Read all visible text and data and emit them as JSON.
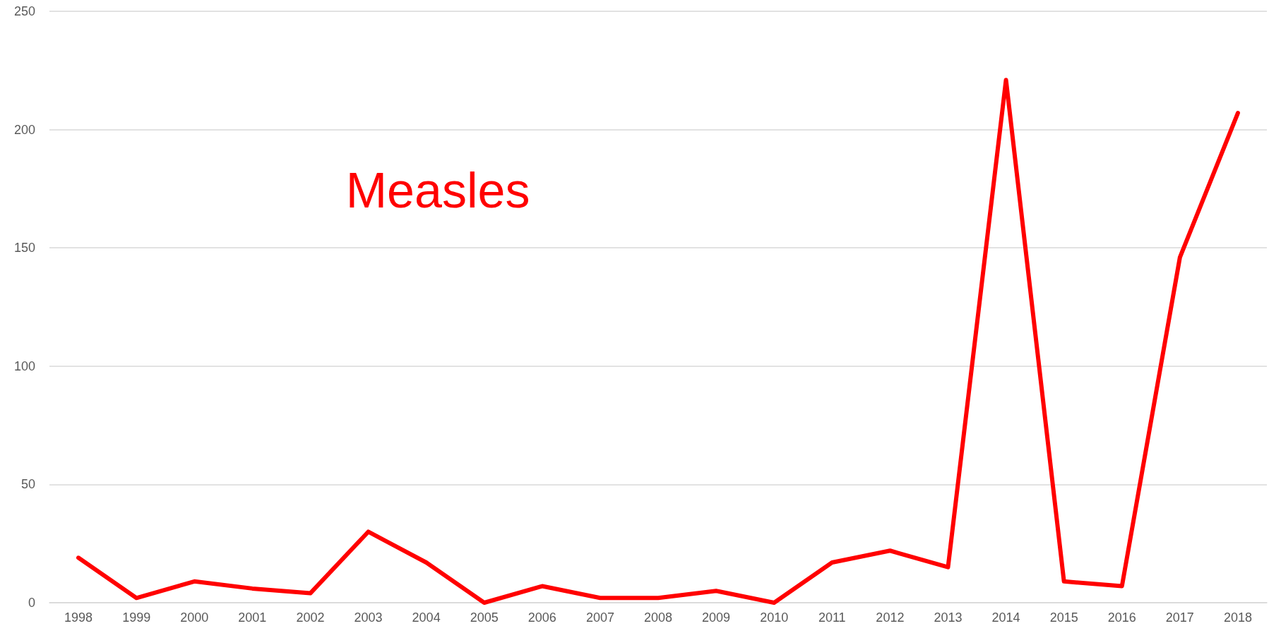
{
  "chart_data": {
    "type": "line",
    "categories": [
      "1998",
      "1999",
      "2000",
      "2001",
      "2002",
      "2003",
      "2004",
      "2005",
      "2006",
      "2007",
      "2008",
      "2009",
      "2010",
      "2011",
      "2012",
      "2013",
      "2014",
      "2015",
      "2016",
      "2017",
      "2018"
    ],
    "series": [
      {
        "name": "Measles",
        "color": "#ff0000",
        "values": [
          19,
          2,
          9,
          6,
          4,
          30,
          17,
          0,
          7,
          2,
          2,
          5,
          0,
          17,
          22,
          15,
          221,
          9,
          7,
          146,
          207
        ]
      }
    ],
    "ylim": [
      0,
      250
    ],
    "yticks": [
      0,
      50,
      100,
      150,
      200,
      250
    ],
    "grid": "y",
    "legend": false,
    "marker": "none",
    "line_style": "solid"
  }
}
